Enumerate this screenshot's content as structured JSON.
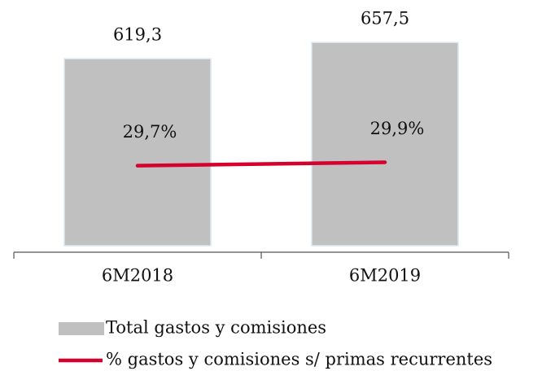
{
  "chart_data": {
    "type": "bar",
    "categories": [
      "6M2018",
      "6M2019"
    ],
    "series": [
      {
        "name": "Total gastos y comisiones",
        "type": "bar",
        "color": "#c0c0c0",
        "values": [
          619.3,
          657.5
        ],
        "value_labels": [
          "619,3",
          "657,5"
        ]
      },
      {
        "name": "% gastos y comisiones s/ primas recurrentes",
        "type": "line",
        "axis": "y2",
        "color": "#d5002b",
        "values": [
          29.7,
          29.9
        ],
        "value_labels": [
          "29,7%",
          "29,9%"
        ]
      }
    ],
    "ylim": [
      180,
      700
    ],
    "y2lim": [
      25,
      38
    ]
  }
}
